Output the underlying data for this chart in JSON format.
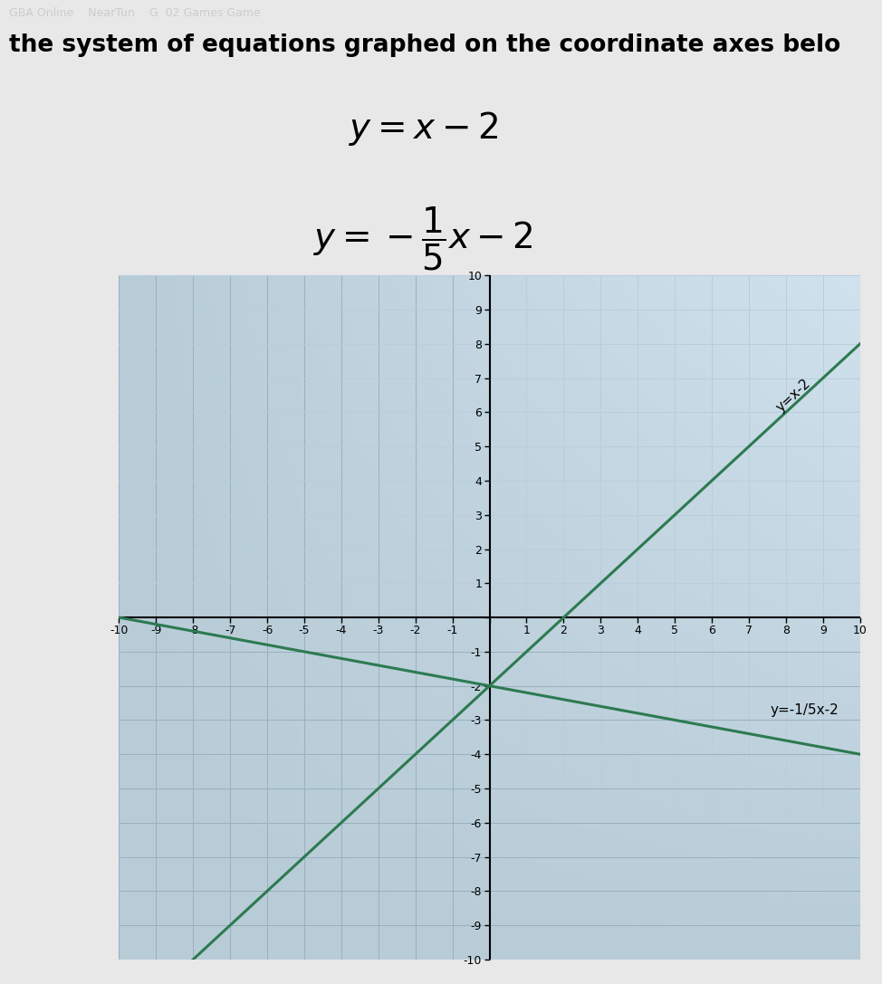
{
  "eq1_slope": 1,
  "eq1_intercept": -2,
  "eq2_slope": -0.2,
  "eq2_intercept": -2,
  "xlim": [
    -10,
    10
  ],
  "ylim": [
    -10,
    10
  ],
  "line_color": "#2d7a50",
  "grid_color_left": "#b8cdd8",
  "grid_color_right": "#c8dce8",
  "bg_color_left": "#c0d0da",
  "bg_color_right": "#d8eef6",
  "outer_bg": "#e8e8e8",
  "header_bg": "#5a1a20",
  "text_area_bg": "#f0f0f0",
  "axis_color": "#000000",
  "line1_annotation": "y=x-2",
  "line2_annotation": "y=-1/5x-2",
  "tick_fontsize": 9,
  "equation_fontsize": 28,
  "header_text": "GBA Online    NearTun    G  02 Games·Game",
  "subtitle": "the system of equations graphed on the coordinate axes belo"
}
